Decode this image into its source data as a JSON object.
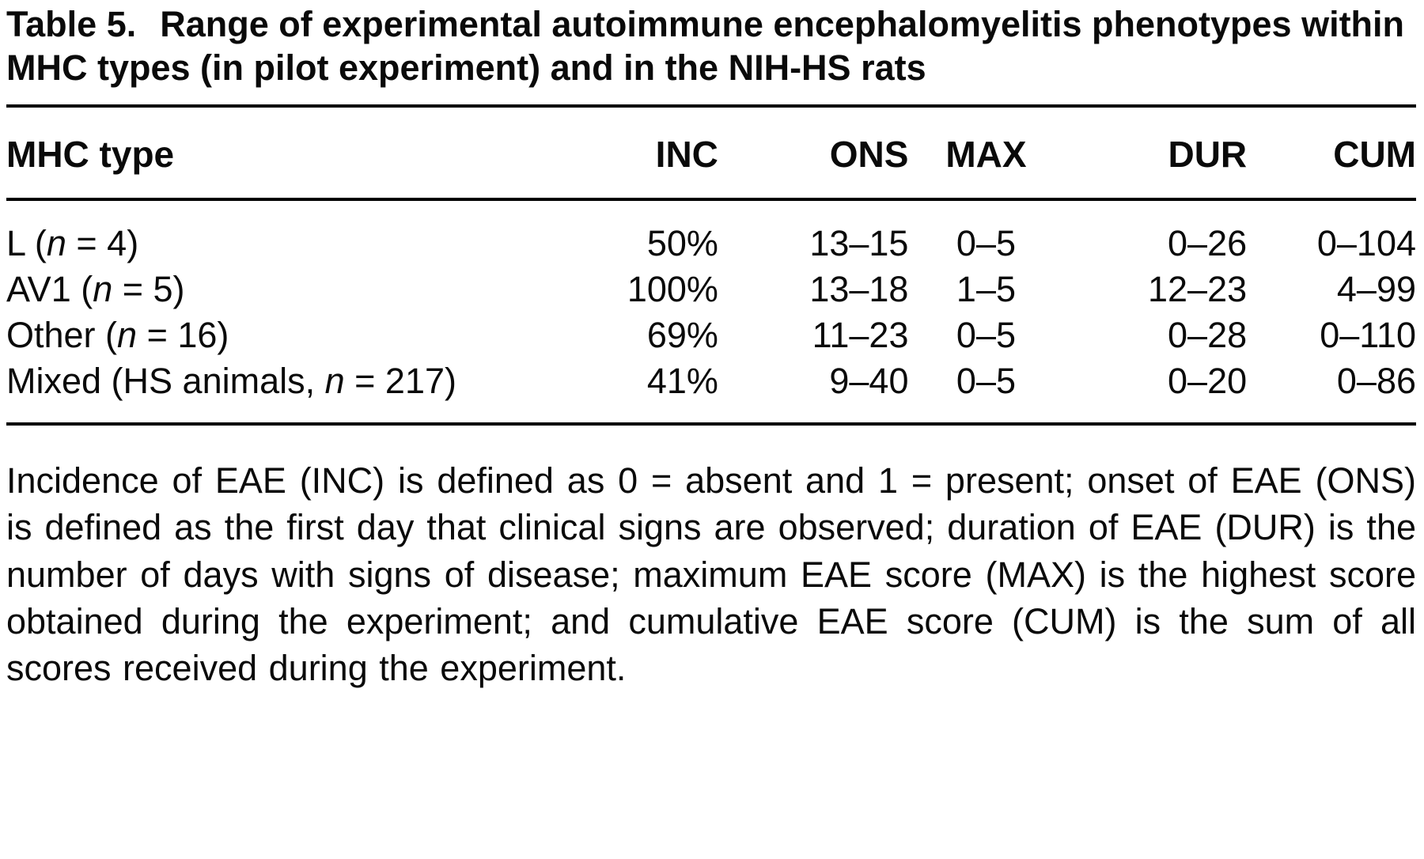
{
  "caption": {
    "label": "Table 5.",
    "title": "Range of experimental autoimmune encephalomyelitis phenotypes within MHC types (in pilot experiment) and in the NIH-HS rats"
  },
  "table": {
    "headers": [
      "MHC type",
      "INC",
      "ONS",
      "MAX",
      "DUR",
      "CUM"
    ],
    "rows": [
      {
        "label": [
          "L (",
          "n",
          " = 4)"
        ],
        "values": [
          "50%",
          "13–15",
          "0–5",
          "0–26",
          "0–104"
        ]
      },
      {
        "label": [
          "AV1 (",
          "n",
          " = 5)"
        ],
        "values": [
          "100%",
          "13–18",
          "1–5",
          "12–23",
          "4–99"
        ]
      },
      {
        "label": [
          "Other (",
          "n",
          " = 16)"
        ],
        "values": [
          "69%",
          "11–23",
          "0–5",
          "0–28",
          "0–110"
        ]
      },
      {
        "label": [
          "Mixed (HS animals, ",
          "n",
          " = 217)"
        ],
        "values": [
          "41%",
          "9–40",
          "0–5",
          "0–20",
          "0–86"
        ]
      }
    ]
  },
  "footnote": "Incidence of EAE (INC) is defined as 0 = absent and 1 = present; onset of EAE (ONS) is defined as the first day that clinical signs are observed; duration of EAE (DUR) is the number of days with signs of disease; maximum EAE score (MAX) is the highest score obtained during the experiment; and cumulative EAE score (CUM) is the sum of all scores received during the experiment."
}
